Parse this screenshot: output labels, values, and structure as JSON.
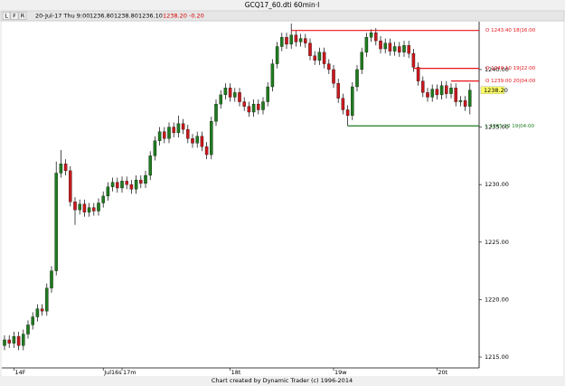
{
  "window_title": "GCQ17_60.dti 60min·I",
  "toolbar": {
    "buttons": [
      "L",
      "F",
      "R"
    ],
    "date": "20-Jul-17 Thu 9:00",
    "quotes": [
      "1236.80",
      "1238.80",
      "1236.10"
    ],
    "last": "1238.20",
    "change": "-0.20"
  },
  "footer": "Chart created by Dynamic Trader  (c) 1996-2014",
  "chart_data": {
    "type": "candlestick",
    "up_color": "#1f7a1f",
    "down_color": "#c8191e",
    "categories": [
      null,
      null,
      "14F",
      null,
      null,
      null,
      null,
      null,
      null,
      null,
      null,
      null,
      null,
      null,
      null,
      null,
      null,
      null,
      null,
      null,
      null,
      "Jul16s",
      null,
      null,
      null,
      "17m",
      null,
      null,
      null,
      null,
      null,
      null,
      null,
      null,
      null,
      null,
      null,
      null,
      null,
      null,
      null,
      null,
      null,
      null,
      null,
      null,
      null,
      null,
      "18t",
      null,
      null,
      null,
      null,
      null,
      null,
      null,
      null,
      null,
      null,
      null,
      null,
      null,
      null,
      null,
      null,
      null,
      null,
      null,
      null,
      null,
      "19w",
      null,
      null,
      null,
      null,
      null,
      null,
      null,
      null,
      null,
      null,
      null,
      null,
      null,
      null,
      null,
      null,
      null,
      null,
      null,
      null,
      null,
      "20t",
      null,
      null,
      null,
      null,
      null,
      null,
      null
    ],
    "open": [
      1216.0,
      1216.5,
      1216.2,
      1216.8,
      1216.0,
      1217.0,
      1217.8,
      1218.5,
      1219.2,
      1219.0,
      1221.0,
      1222.5,
      1231.0,
      1231.8,
      1231.2,
      1228.5,
      1227.8,
      1228.3,
      1227.6,
      1228.0,
      1227.7,
      1228.4,
      1229.0,
      1229.8,
      1230.2,
      1229.7,
      1230.3,
      1230.0,
      1229.6,
      1230.4,
      1230.1,
      1230.8,
      1232.5,
      1233.8,
      1234.6,
      1234.0,
      1235.0,
      1234.5,
      1235.3,
      1234.8,
      1234.0,
      1233.6,
      1234.2,
      1233.3,
      1232.6,
      1235.5,
      1237.0,
      1237.8,
      1238.4,
      1237.6,
      1238.0,
      1237.2,
      1236.8,
      1236.3,
      1237.0,
      1236.5,
      1237.2,
      1238.5,
      1240.5,
      1242.0,
      1242.8,
      1242.2,
      1243.0,
      1242.4,
      1242.7,
      1242.3,
      1241.2,
      1240.8,
      1241.5,
      1240.5,
      1240.0,
      1238.8,
      1237.5,
      1236.5,
      1236.0,
      1238.5,
      1240.0,
      1241.5,
      1242.8,
      1243.2,
      1242.5,
      1241.8,
      1242.3,
      1241.6,
      1242.0,
      1241.5,
      1242.1,
      1241.4,
      1240.2,
      1239.0,
      1238.0,
      1237.6,
      1238.3,
      1237.8,
      1238.6,
      1237.9,
      1238.4,
      1237.2,
      1237.3,
      1236.8
    ],
    "high": [
      1216.9,
      1216.9,
      1217.2,
      1217.2,
      1217.4,
      1218.2,
      1218.9,
      1219.6,
      1219.6,
      1221.4,
      1222.9,
      1232.0,
      1233.0,
      1232.2,
      1231.6,
      1228.9,
      1228.7,
      1228.7,
      1228.4,
      1228.4,
      1228.8,
      1229.4,
      1230.2,
      1230.6,
      1230.6,
      1230.7,
      1230.7,
      1230.4,
      1230.8,
      1230.8,
      1231.2,
      1232.9,
      1234.2,
      1235.0,
      1235.0,
      1235.4,
      1235.4,
      1236.0,
      1235.7,
      1235.2,
      1234.4,
      1234.6,
      1234.6,
      1233.7,
      1235.9,
      1237.4,
      1238.2,
      1238.8,
      1238.8,
      1238.4,
      1238.4,
      1237.6,
      1237.2,
      1237.4,
      1237.4,
      1237.6,
      1238.9,
      1240.9,
      1242.4,
      1243.2,
      1243.2,
      1244.0,
      1243.4,
      1243.1,
      1243.1,
      1242.7,
      1241.6,
      1241.9,
      1241.9,
      1240.9,
      1240.4,
      1239.2,
      1237.9,
      1236.9,
      1238.9,
      1240.4,
      1241.9,
      1243.2,
      1243.5,
      1243.6,
      1242.9,
      1242.7,
      1242.7,
      1242.4,
      1242.4,
      1242.5,
      1242.5,
      1241.8,
      1240.6,
      1239.4,
      1238.4,
      1238.7,
      1238.7,
      1239.0,
      1239.0,
      1238.8,
      1238.8,
      1237.7,
      1237.7,
      1238.8
    ],
    "low": [
      1215.6,
      1215.8,
      1215.8,
      1215.6,
      1215.6,
      1216.6,
      1217.4,
      1218.1,
      1218.6,
      1218.6,
      1220.6,
      1222.1,
      1230.6,
      1230.8,
      1228.1,
      1226.5,
      1227.4,
      1227.2,
      1227.2,
      1227.3,
      1227.3,
      1228.0,
      1228.6,
      1229.4,
      1229.3,
      1229.3,
      1229.6,
      1229.2,
      1229.2,
      1229.7,
      1229.7,
      1230.4,
      1232.1,
      1233.4,
      1233.6,
      1233.6,
      1234.1,
      1234.1,
      1234.4,
      1233.6,
      1233.2,
      1233.2,
      1232.9,
      1232.2,
      1232.2,
      1235.1,
      1236.6,
      1237.4,
      1237.2,
      1237.2,
      1236.8,
      1236.4,
      1235.9,
      1235.9,
      1236.1,
      1236.1,
      1236.8,
      1238.1,
      1240.1,
      1241.6,
      1241.8,
      1241.8,
      1242.0,
      1242.0,
      1241.9,
      1240.8,
      1240.4,
      1240.4,
      1240.1,
      1239.6,
      1238.4,
      1237.1,
      1236.1,
      1235.1,
      1235.6,
      1238.1,
      1239.6,
      1241.1,
      1242.4,
      1242.1,
      1241.4,
      1241.4,
      1241.2,
      1241.2,
      1241.1,
      1241.1,
      1241.0,
      1239.8,
      1238.6,
      1237.6,
      1237.2,
      1237.2,
      1237.4,
      1237.4,
      1237.5,
      1237.5,
      1236.8,
      1236.8,
      1236.4,
      1236.1
    ],
    "close": [
      1216.5,
      1216.2,
      1216.8,
      1216.0,
      1217.0,
      1217.8,
      1218.5,
      1219.2,
      1219.0,
      1221.0,
      1222.5,
      1231.0,
      1231.8,
      1231.2,
      1228.5,
      1227.8,
      1228.3,
      1227.6,
      1228.0,
      1227.7,
      1228.4,
      1229.0,
      1229.8,
      1230.2,
      1229.7,
      1230.3,
      1230.0,
      1229.6,
      1230.4,
      1230.1,
      1230.8,
      1232.5,
      1233.8,
      1234.6,
      1234.0,
      1235.0,
      1234.5,
      1235.3,
      1234.8,
      1234.0,
      1233.6,
      1234.2,
      1233.3,
      1232.6,
      1235.5,
      1237.0,
      1237.8,
      1238.4,
      1237.6,
      1238.0,
      1237.2,
      1236.8,
      1236.3,
      1237.0,
      1236.5,
      1237.2,
      1238.5,
      1240.5,
      1242.0,
      1242.8,
      1242.2,
      1243.0,
      1242.4,
      1242.7,
      1242.3,
      1241.2,
      1240.8,
      1241.5,
      1240.5,
      1240.0,
      1238.8,
      1237.5,
      1236.5,
      1236.0,
      1238.5,
      1240.0,
      1241.5,
      1242.8,
      1243.2,
      1242.5,
      1241.8,
      1242.3,
      1241.6,
      1242.0,
      1241.5,
      1242.1,
      1241.4,
      1240.2,
      1239.0,
      1238.0,
      1237.6,
      1238.3,
      1237.8,
      1238.6,
      1237.9,
      1238.4,
      1237.2,
      1237.3,
      1236.8,
      1238.2
    ],
    "ylim": [
      1214.06,
      1244.16
    ],
    "yticks": [
      {
        "value": 1215,
        "label": "1215.00"
      },
      {
        "value": 1220,
        "label": "1220.00"
      },
      {
        "value": 1225,
        "label": "1225.00"
      },
      {
        "value": 1230,
        "label": "1230.00"
      },
      {
        "value": 1235,
        "label": "1235.00"
      },
      {
        "value": 1240,
        "label": "1240.00"
      }
    ],
    "levels": [
      {
        "value": 1243.4,
        "label": "O 1243.40 18|16:00",
        "color": "#e8141b"
      },
      {
        "value": 1240.1,
        "label": "O 1240.10 19|22:00",
        "color": "#e8141b"
      },
      {
        "value": 1239.0,
        "label": "O 1239.00 20|04:00",
        "color": "#e8141b"
      },
      {
        "value": 1235.1,
        "label": "L 1235.10 19|04:00",
        "color": "#1f7a1f"
      }
    ],
    "price_marker": {
      "value": 1238.2,
      "label": "1238.20",
      "color": "#ffff66"
    }
  }
}
